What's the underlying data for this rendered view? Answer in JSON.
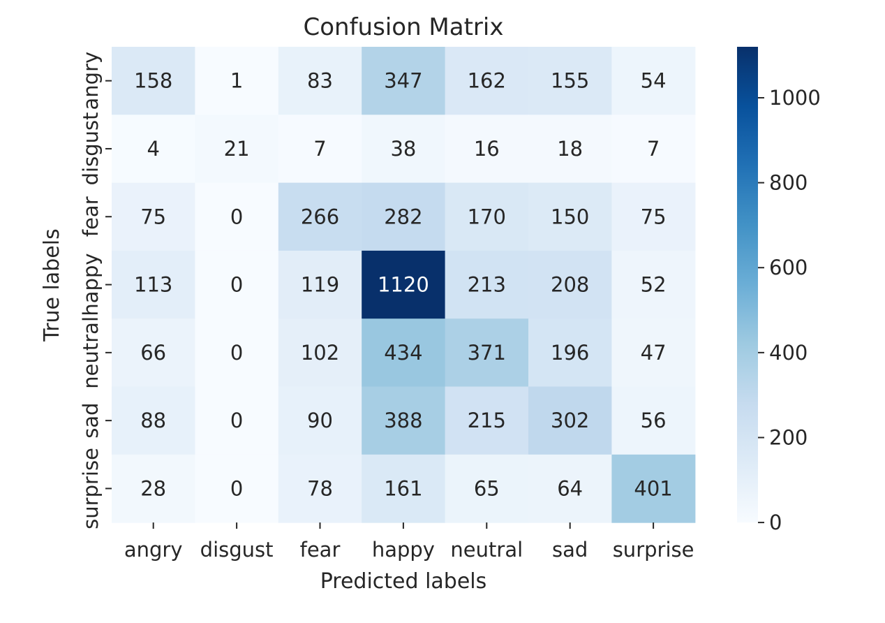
{
  "chart_data": {
    "type": "heatmap",
    "title": "Confusion Matrix",
    "xlabel": "Predicted labels",
    "ylabel": "True labels",
    "x_categories": [
      "angry",
      "disgust",
      "fear",
      "happy",
      "neutral",
      "sad",
      "surprise"
    ],
    "y_categories": [
      "angry",
      "disgust",
      "fear",
      "happy",
      "neutral",
      "sad",
      "surprise"
    ],
    "values": [
      [
        158,
        1,
        83,
        347,
        162,
        155,
        54
      ],
      [
        4,
        21,
        7,
        38,
        16,
        18,
        7
      ],
      [
        75,
        0,
        266,
        282,
        170,
        150,
        75
      ],
      [
        113,
        0,
        119,
        1120,
        213,
        208,
        52
      ],
      [
        66,
        0,
        102,
        434,
        371,
        196,
        47
      ],
      [
        88,
        0,
        90,
        388,
        215,
        302,
        56
      ],
      [
        28,
        0,
        78,
        161,
        65,
        64,
        401
      ]
    ],
    "colormap": "Blues",
    "colorbar": {
      "range": [
        0,
        1120
      ],
      "ticks": [
        0,
        200,
        400,
        600,
        800,
        1000
      ]
    },
    "grid": false
  }
}
